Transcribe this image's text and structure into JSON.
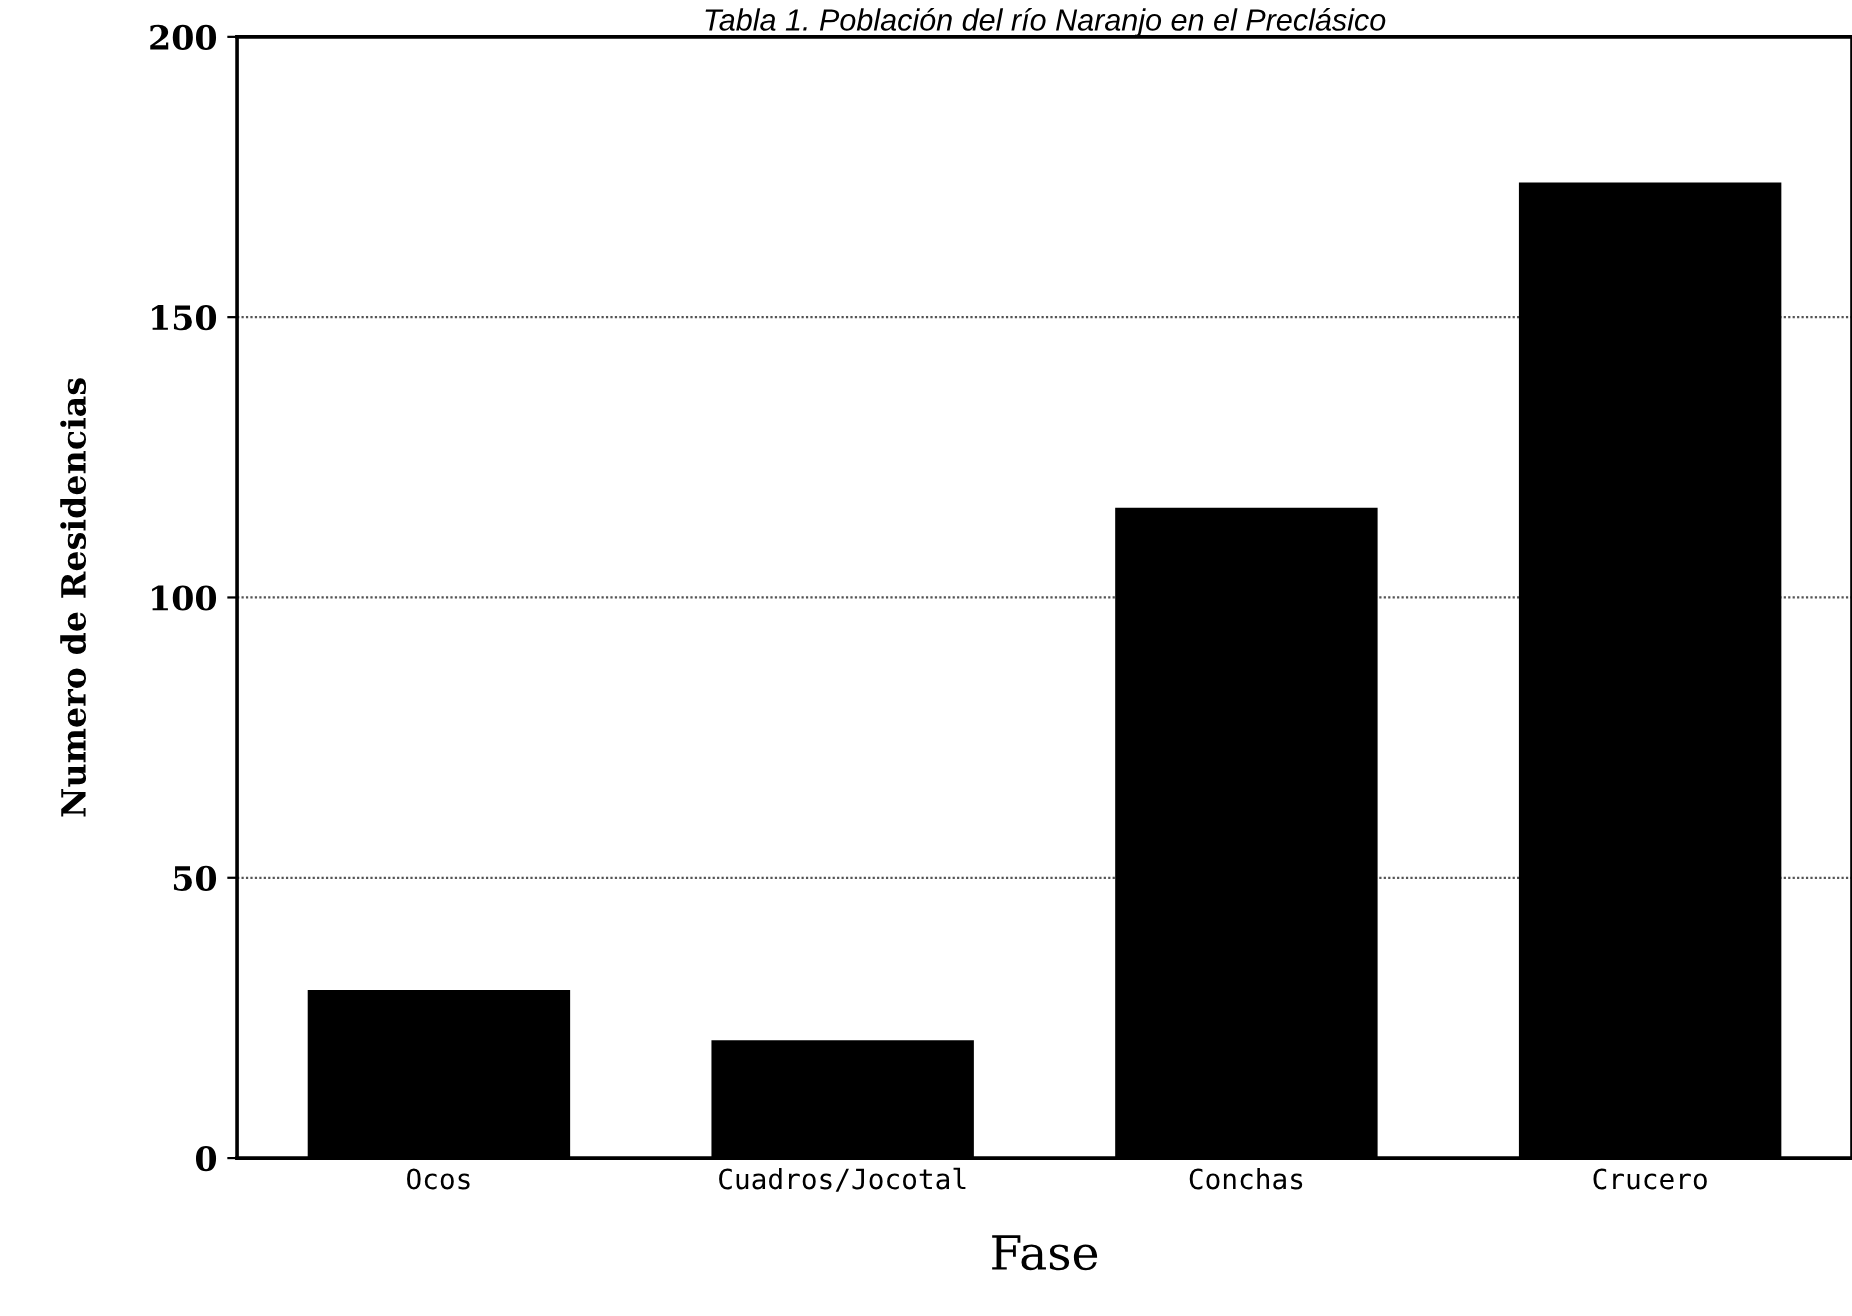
{
  "chart_data": {
    "type": "bar",
    "title": "Tabla 1. Población del río Naranjo en el Preclásico",
    "xlabel": "Fase",
    "ylabel": "Numero de Residencias",
    "categories": [
      "Ocos",
      "Cuadros/Jocotal",
      "Conchas",
      "Crucero"
    ],
    "values": [
      30,
      21,
      116,
      174
    ],
    "color": "#000000",
    "ylim": [
      0,
      200
    ],
    "yticks": [
      0,
      50,
      100,
      150,
      200
    ],
    "grid": "y"
  }
}
